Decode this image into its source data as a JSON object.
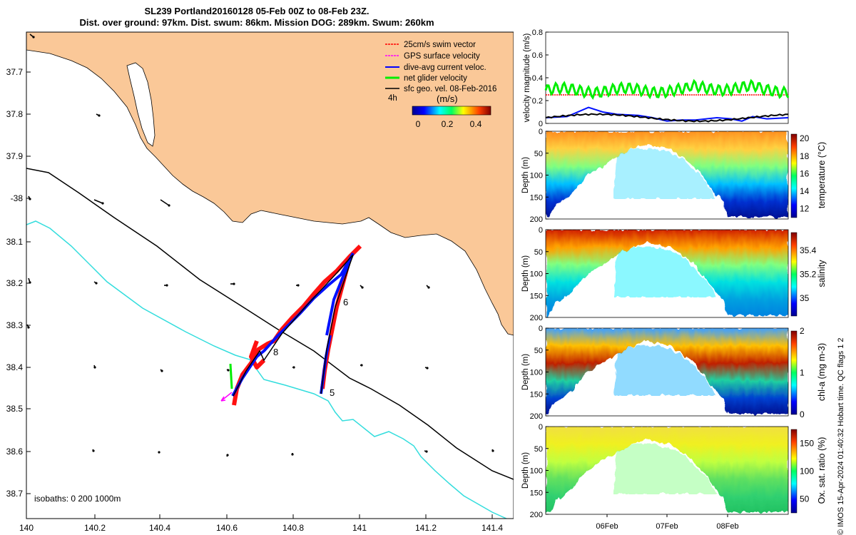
{
  "header": {
    "title": "SL239 Portland20160128 05-Feb 00Z to 08-Feb 23Z.",
    "subtitle": "Dist. over ground: 97km. Dist. swum: 86km. Mission DOG: 289km. Swum: 260km"
  },
  "map": {
    "lon_ticks": [
      "140",
      "140.2",
      "140.4",
      "140.6",
      "140.8",
      "141",
      "141.2",
      "141.4"
    ],
    "lat_ticks": [
      "37.7",
      "37.8",
      "37.9",
      "-38",
      "38.1",
      "38.2",
      "38.3",
      "38.4",
      "38.5",
      "38.6",
      "38.7"
    ],
    "legend": [
      {
        "label": "25cm/s swim vector",
        "color": "#ff0000"
      },
      {
        "label": "GPS surface velocity",
        "color": "#ff00ff"
      },
      {
        "label": "dive-avg current veloc.",
        "color": "#0000ff"
      },
      {
        "label": "net glider velocity",
        "color": "#00ee00"
      },
      {
        "label": "sfc geo. vel. 08-Feb-2016",
        "color": "#000000"
      }
    ],
    "scale_label": "4h",
    "colorbar_title": "(m/s)",
    "colorbar_ticks": [
      "0",
      "0.2",
      "0.4"
    ],
    "isobath_label": "isobaths: 0   200  1000m",
    "day_labels": [
      "5",
      "6",
      "8"
    ],
    "colors": {
      "land": "#fac898",
      "isobath200": "#000000",
      "isobath1000": "#33dddd"
    }
  },
  "panels": {
    "velocity": {
      "ylabel": "velocity magnitude (m/s)",
      "yticks": [
        "0",
        "0.2",
        "0.4",
        "0.6",
        "0.8"
      ]
    },
    "depth_label": "Depth (m)",
    "depth_ticks": [
      "0",
      "50",
      "100",
      "150",
      "200"
    ],
    "xticks": [
      "06Feb",
      "07Feb",
      "08Feb"
    ],
    "temperature": {
      "label": "temperature (°C)",
      "ticks": [
        "12",
        "14",
        "16",
        "18",
        "20"
      ]
    },
    "salinity": {
      "label": "salinity",
      "ticks": [
        "35",
        "35.2",
        "35.4"
      ]
    },
    "chla": {
      "label": "chl-a (mg m-3)",
      "ticks": [
        "0",
        "1",
        "2"
      ]
    },
    "oxygen": {
      "label": "Ox. sat. ratio (%)",
      "ticks": [
        "50",
        "100",
        "150"
      ]
    }
  },
  "footer": {
    "copyright": "© IMOS 15-Apr-2024 01:40:32 Hobart time. QC flags 1  2"
  },
  "chart_data": [
    {
      "type": "scatter",
      "title": "SL239 Portland20160128 05-Feb 00Z to 08-Feb 23Z.",
      "xlim": [
        140,
        141.45
      ],
      "ylim": [
        38.75,
        37.6
      ],
      "xlabel": "",
      "ylabel": "",
      "series": [
        {
          "name": "dive-avg current veloc.",
          "x": [
            140.62,
            140.7,
            140.85,
            140.98,
            140.89
          ],
          "y": [
            38.46,
            38.37,
            38.26,
            38.13,
            38.46
          ]
        },
        {
          "name": "net glider velocity",
          "x": [
            140.615,
            140.62
          ],
          "y": [
            38.4,
            38.45
          ]
        }
      ]
    },
    {
      "type": "line",
      "ylabel": "velocity magnitude (m/s)",
      "ylim": [
        0,
        0.8
      ],
      "xticks": [
        "06Feb",
        "07Feb",
        "08Feb"
      ],
      "series": [
        {
          "name": "25cm/s swim vector",
          "values": [
            0.25,
            0.25,
            0.25,
            0.25,
            0.25,
            0.25
          ]
        },
        {
          "name": "net glider velocity",
          "values": [
            0.3,
            0.28,
            0.27,
            0.29,
            0.32,
            0.3
          ]
        },
        {
          "name": "dive-avg current veloc.",
          "values": [
            0.05,
            0.12,
            0.05,
            0.02,
            0.03,
            0.04
          ]
        },
        {
          "name": "sfc geo. vel.",
          "values": [
            0.05,
            0.07,
            0.08,
            0.04,
            0.05,
            0.03
          ]
        }
      ]
    },
    {
      "type": "heatmap",
      "ylabel": "Depth (m)",
      "clabel": "temperature (°C)",
      "crange": [
        11,
        20.5
      ],
      "ylim": [
        200,
        0
      ]
    },
    {
      "type": "heatmap",
      "ylabel": "Depth (m)",
      "clabel": "salinity",
      "crange": [
        34.85,
        35.55
      ],
      "ylim": [
        200,
        0
      ]
    },
    {
      "type": "heatmap",
      "ylabel": "Depth (m)",
      "clabel": "chl-a (mg m-3)",
      "crange": [
        0,
        2
      ],
      "ylim": [
        200,
        0
      ]
    },
    {
      "type": "heatmap",
      "ylabel": "Depth (m)",
      "clabel": "Ox. sat. ratio (%)",
      "crange": [
        25,
        175
      ],
      "ylim": [
        200,
        0
      ]
    }
  ]
}
